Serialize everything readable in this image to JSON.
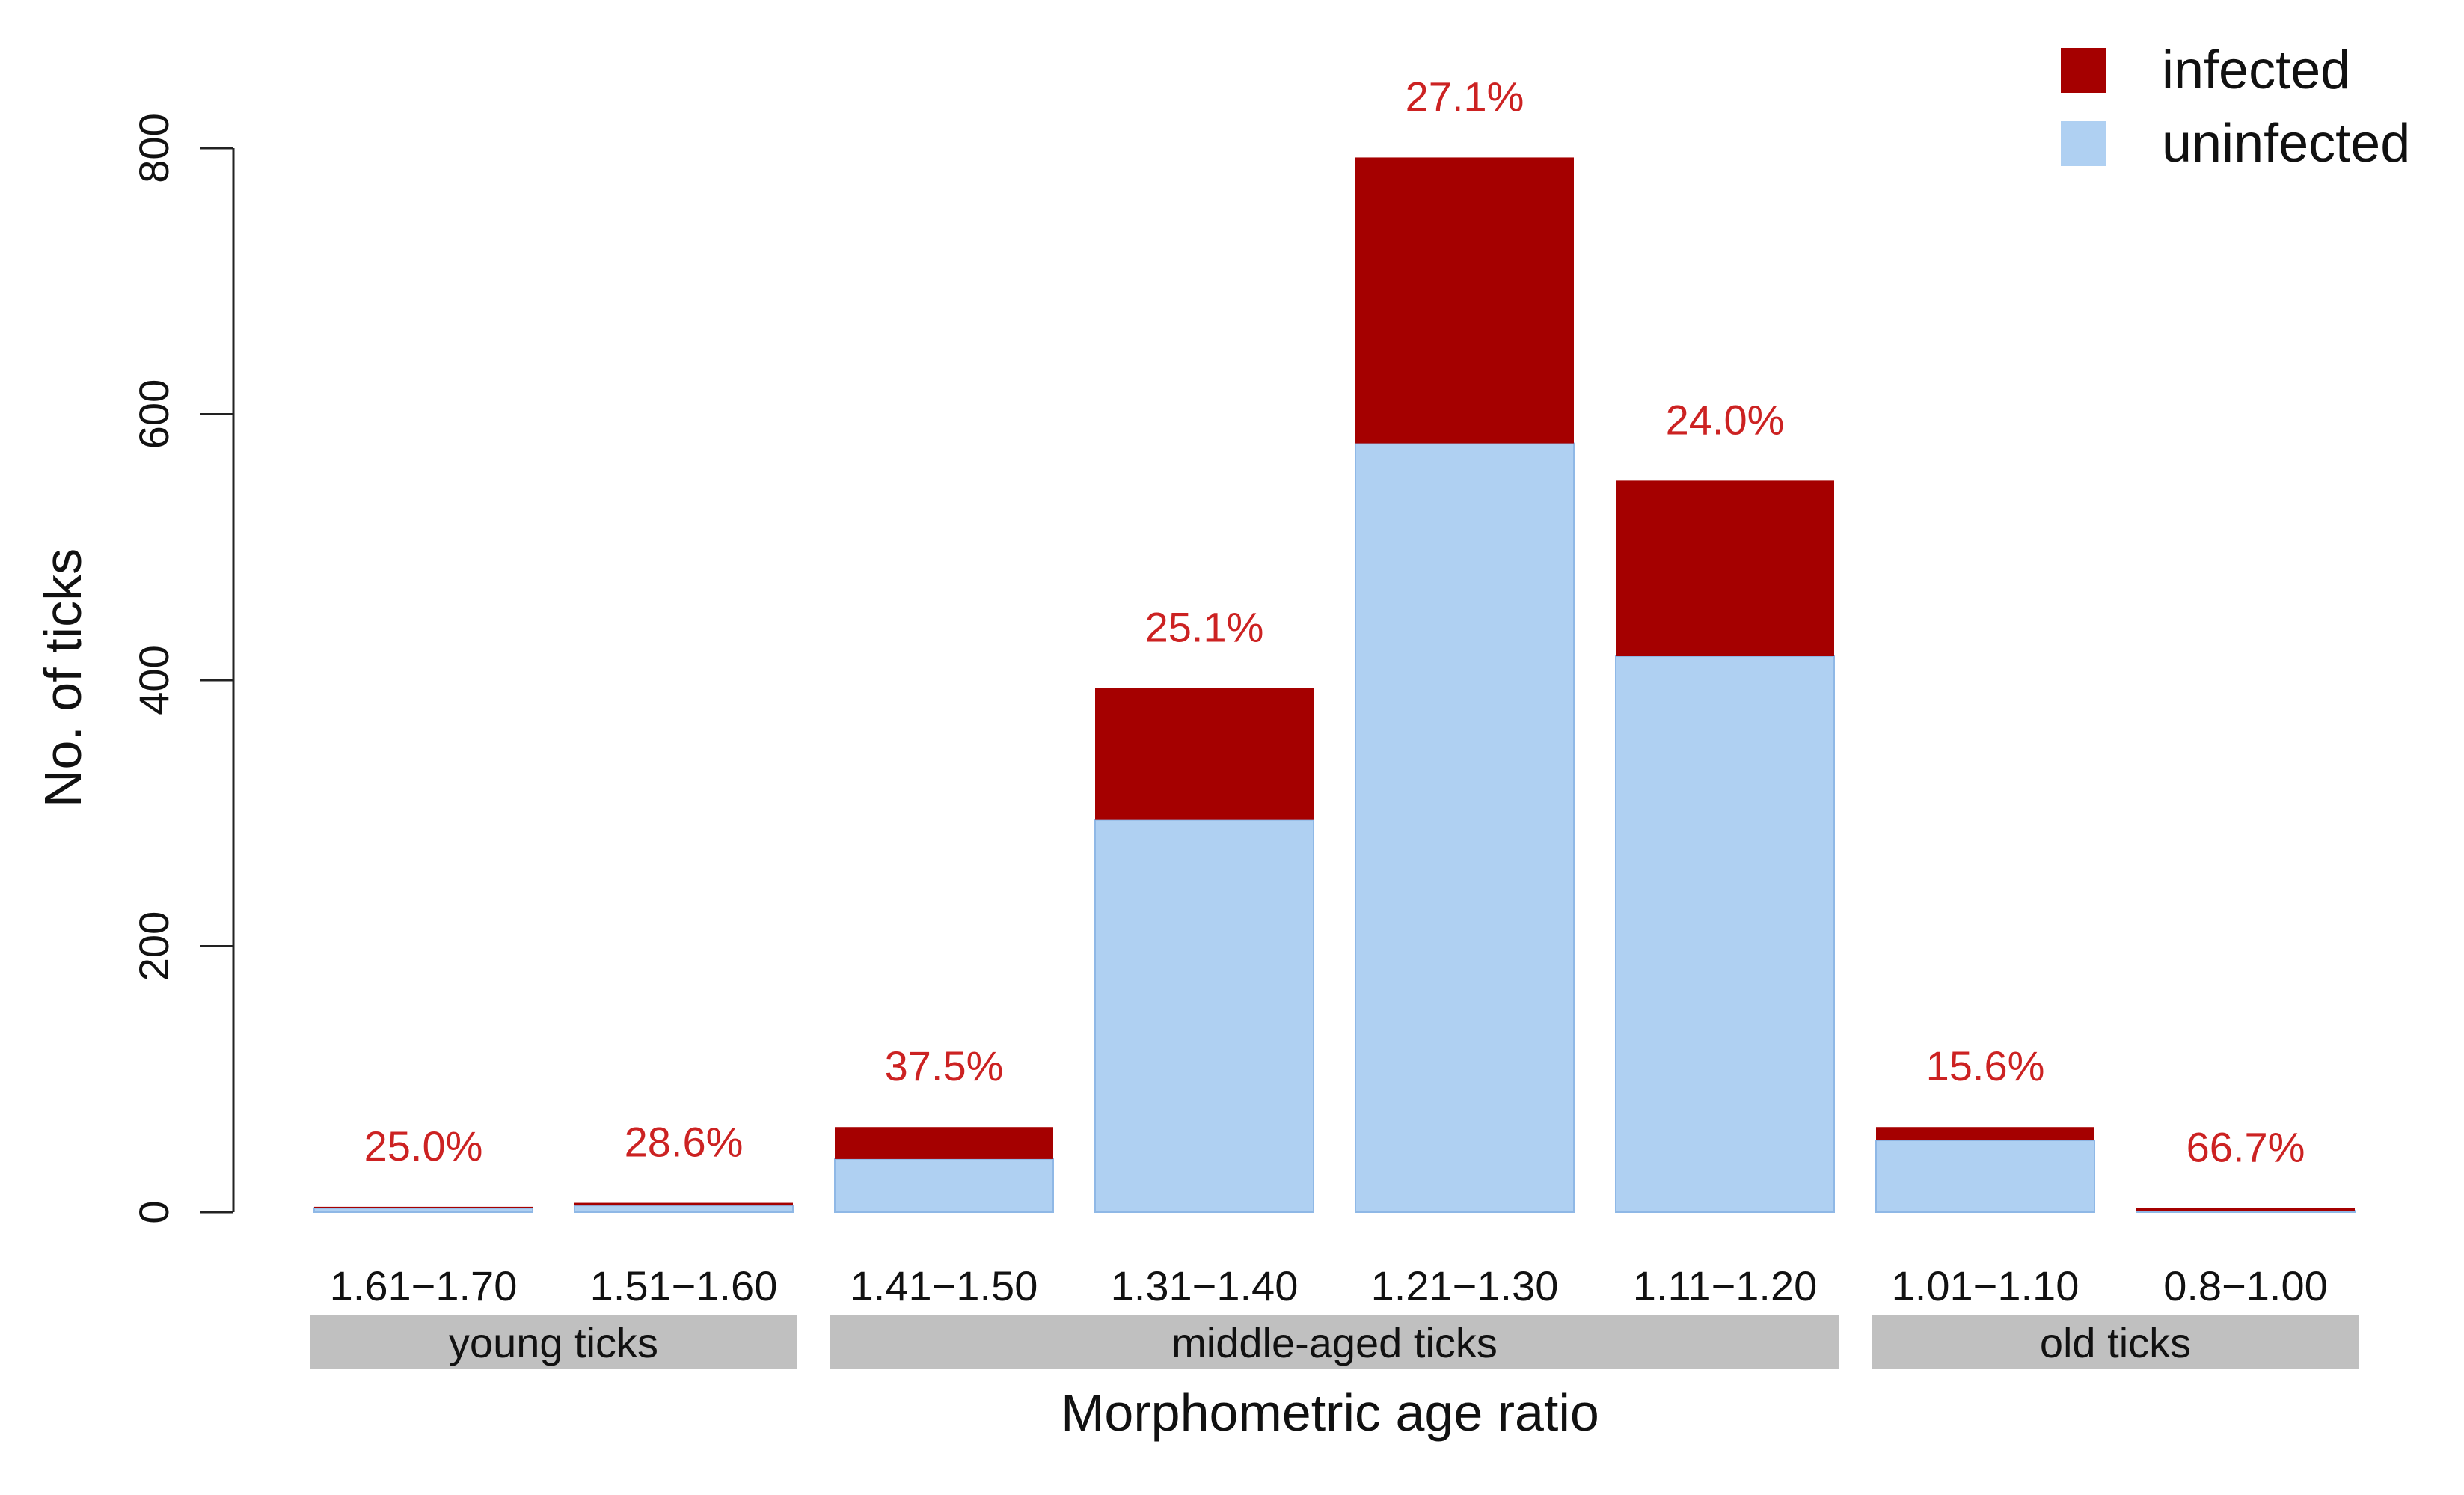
{
  "chart_data": {
    "type": "bar",
    "stacked": true,
    "categories": [
      "1.61−1.70",
      "1.51−1.60",
      "1.41−1.50",
      "1.31−1.40",
      "1.21−1.30",
      "1.11−1.20",
      "1.01−1.10",
      "0.8−1.00"
    ],
    "series": [
      {
        "name": "uninfected",
        "color": "#afd0f2",
        "values": [
          3,
          5,
          40,
          295,
          578,
          418,
          54,
          1
        ]
      },
      {
        "name": "infected",
        "color": "#a50000",
        "values": [
          1,
          2,
          24,
          99,
          215,
          132,
          10,
          2
        ]
      }
    ],
    "bar_labels": [
      "25.0%",
      "28.6%",
      "37.5%",
      "25.1%",
      "27.1%",
      "24.0%",
      "15.6%",
      "66.7%"
    ],
    "groups": [
      {
        "label": "young ticks",
        "from": 0,
        "to": 1
      },
      {
        "label": "middle-aged ticks",
        "from": 2,
        "to": 5
      },
      {
        "label": "old ticks",
        "from": 6,
        "to": 7
      }
    ],
    "xlabel": "Morphometric age ratio",
    "ylabel": "No. of ticks",
    "ylim": [
      0,
      800
    ],
    "yticks": [
      "0",
      "200",
      "400",
      "600",
      "800"
    ],
    "legend": {
      "position": "top-right",
      "entries": [
        "infected",
        "uninfected"
      ]
    },
    "grid": false,
    "colors": {
      "label": "#cc2222",
      "group_box": "#c0c0c0"
    }
  }
}
